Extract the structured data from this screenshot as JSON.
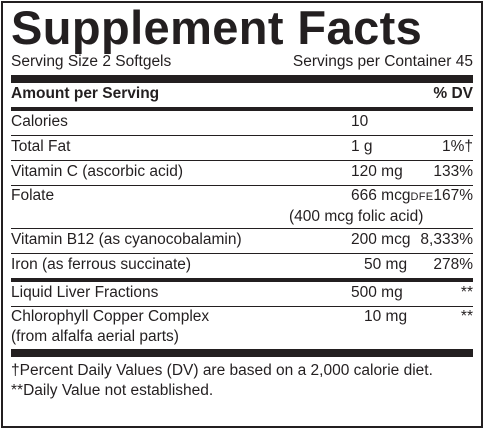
{
  "title": "Supplement Facts",
  "serving": {
    "size": "Serving Size 2 Softgels",
    "per_container": "Servings per Container 45"
  },
  "header": {
    "amount": "Amount per Serving",
    "dv": "% DV"
  },
  "rows": [
    {
      "name": "Calories",
      "amount": "10",
      "dv": ""
    },
    {
      "name": "Total Fat",
      "amount": "1 g",
      "dv": "1%†"
    },
    {
      "name": "Vitamin C (ascorbic acid)",
      "amount": "120 mg",
      "dv": "133%"
    },
    {
      "name": "Folate",
      "amount": "666 mcg",
      "unit_note": "DFE",
      "dv": "167%",
      "sub": "(400 mcg folic acid)"
    },
    {
      "name": "Vitamin B12 (as cyanocobalamin)",
      "amount": "200 mcg",
      "dv": "8,333%"
    },
    {
      "name": "Iron (as ferrous succinate)",
      "amount": "50 mg",
      "dv": "278%"
    },
    {
      "name": "Liquid Liver Fractions",
      "amount": "500 mg",
      "dv": "**"
    },
    {
      "name": "Chlorophyll Copper Complex",
      "name2": "(from alfalfa aerial parts)",
      "amount": "10 mg",
      "dv": "**"
    }
  ],
  "footnotes": [
    "†Percent Daily Values (DV) are based on a 2,000 calorie diet.",
    "**Daily Value not established."
  ]
}
